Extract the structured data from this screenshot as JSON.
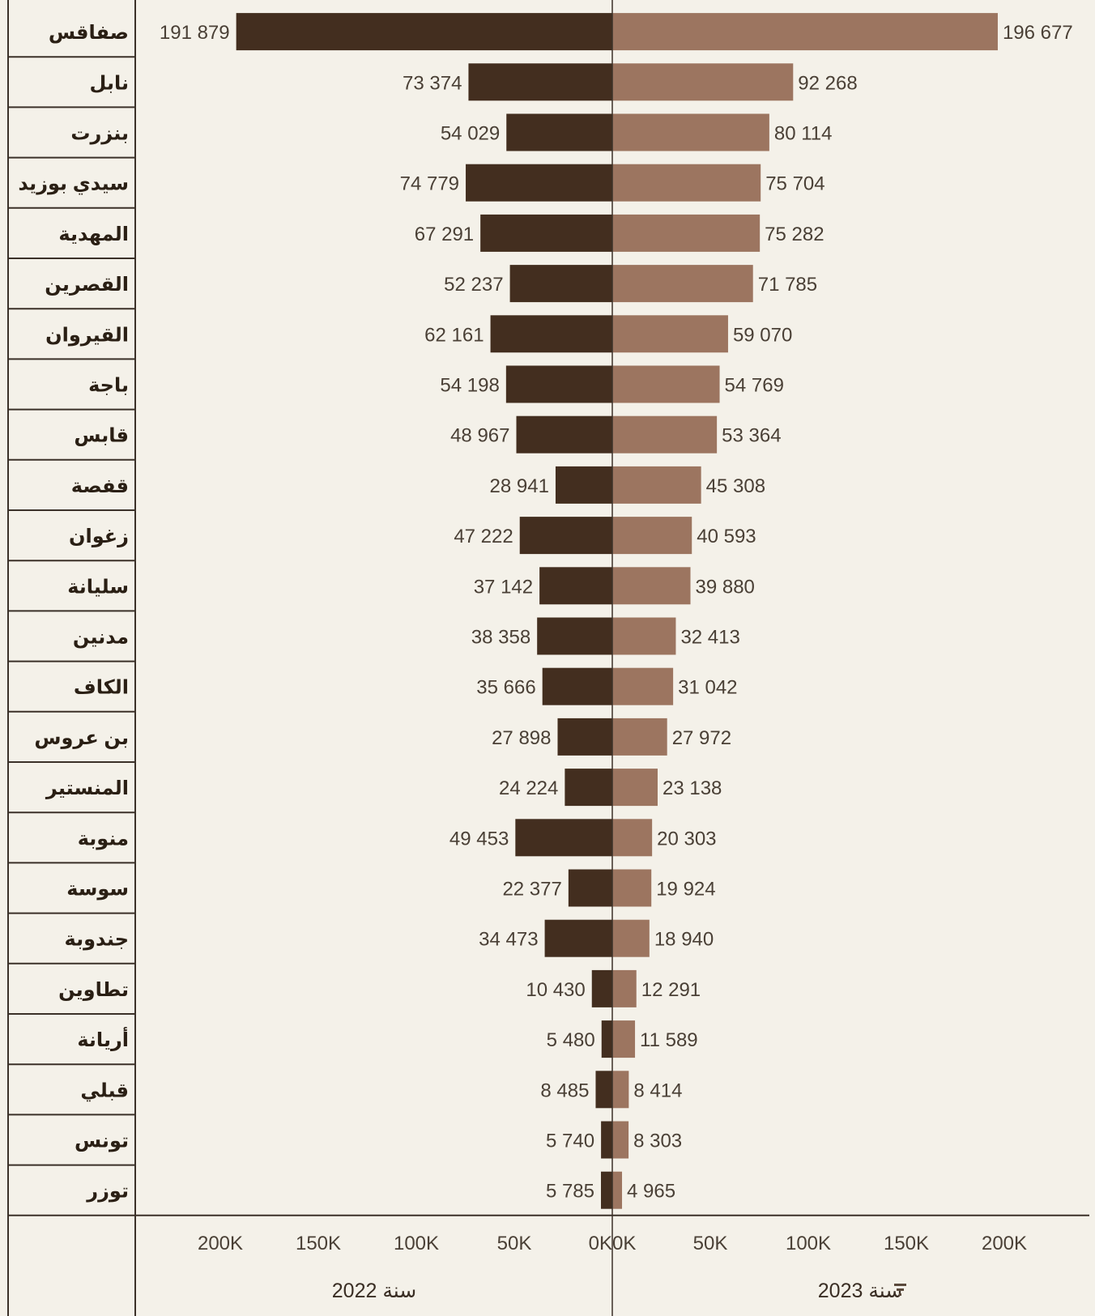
{
  "chart_data": {
    "type": "bar",
    "orientation": "horizontal-butterfly",
    "categories": [
      "صفاقس",
      "نابل",
      "بنزرت",
      "سيدي بوزيد",
      "المهدية",
      "القصرين",
      "القيروان",
      "باجة",
      "قابس",
      "قفصة",
      "زغوان",
      "سليانة",
      "مدنين",
      "الكاف",
      "بن عروس",
      "المنستير",
      "منوبة",
      "سوسة",
      "جندوبة",
      "تطاوين",
      "أريانة",
      "قبلي",
      "تونس",
      "توزر"
    ],
    "series": [
      {
        "name": "سنة 2022",
        "side": "left",
        "color": "#432e1f",
        "values": [
          191879,
          73374,
          54029,
          74779,
          67291,
          52237,
          62161,
          54198,
          48967,
          28941,
          47222,
          37142,
          38358,
          35666,
          27898,
          24224,
          49453,
          22377,
          34473,
          10430,
          5480,
          8485,
          5740,
          5785
        ],
        "value_labels": [
          "191 879",
          "73 374",
          "54 029",
          "74 779",
          "67 291",
          "52 237",
          "62 161",
          "54 198",
          "48 967",
          "28 941",
          "47 222",
          "37 142",
          "38 358",
          "35 666",
          "27 898",
          "24 224",
          "49 453",
          "22 377",
          "34 473",
          "10 430",
          "5 480",
          "8 485",
          "5 740",
          "5 785"
        ]
      },
      {
        "name": "سنة 2023",
        "side": "right",
        "color": "#9c7560",
        "values": [
          196677,
          92268,
          80114,
          75704,
          75282,
          71785,
          59070,
          54769,
          53364,
          45308,
          40593,
          39880,
          32413,
          31042,
          27972,
          23138,
          20303,
          19924,
          18940,
          12291,
          11589,
          8414,
          8303,
          4965
        ],
        "value_labels": [
          "196 677",
          "92 268",
          "80 114",
          "75 704",
          "75 282",
          "71 785",
          "59 070",
          "54 769",
          "53 364",
          "45 308",
          "40 593",
          "39 880",
          "32 413",
          "31 042",
          "27 972",
          "23 138",
          "20 303",
          "19 924",
          "18 940",
          "12 291",
          "11 589",
          "8 414",
          "8 303",
          "4 965"
        ]
      }
    ],
    "left_ticks": [
      "200K",
      "150K",
      "100K",
      "50K",
      "0K"
    ],
    "right_ticks": [
      "0K",
      "50K",
      "100K",
      "150K",
      "200K"
    ],
    "tick_values": [
      0,
      50000,
      100000,
      150000,
      200000
    ],
    "xlim": [
      0,
      200000
    ],
    "grid": false,
    "legend": "bottom"
  }
}
